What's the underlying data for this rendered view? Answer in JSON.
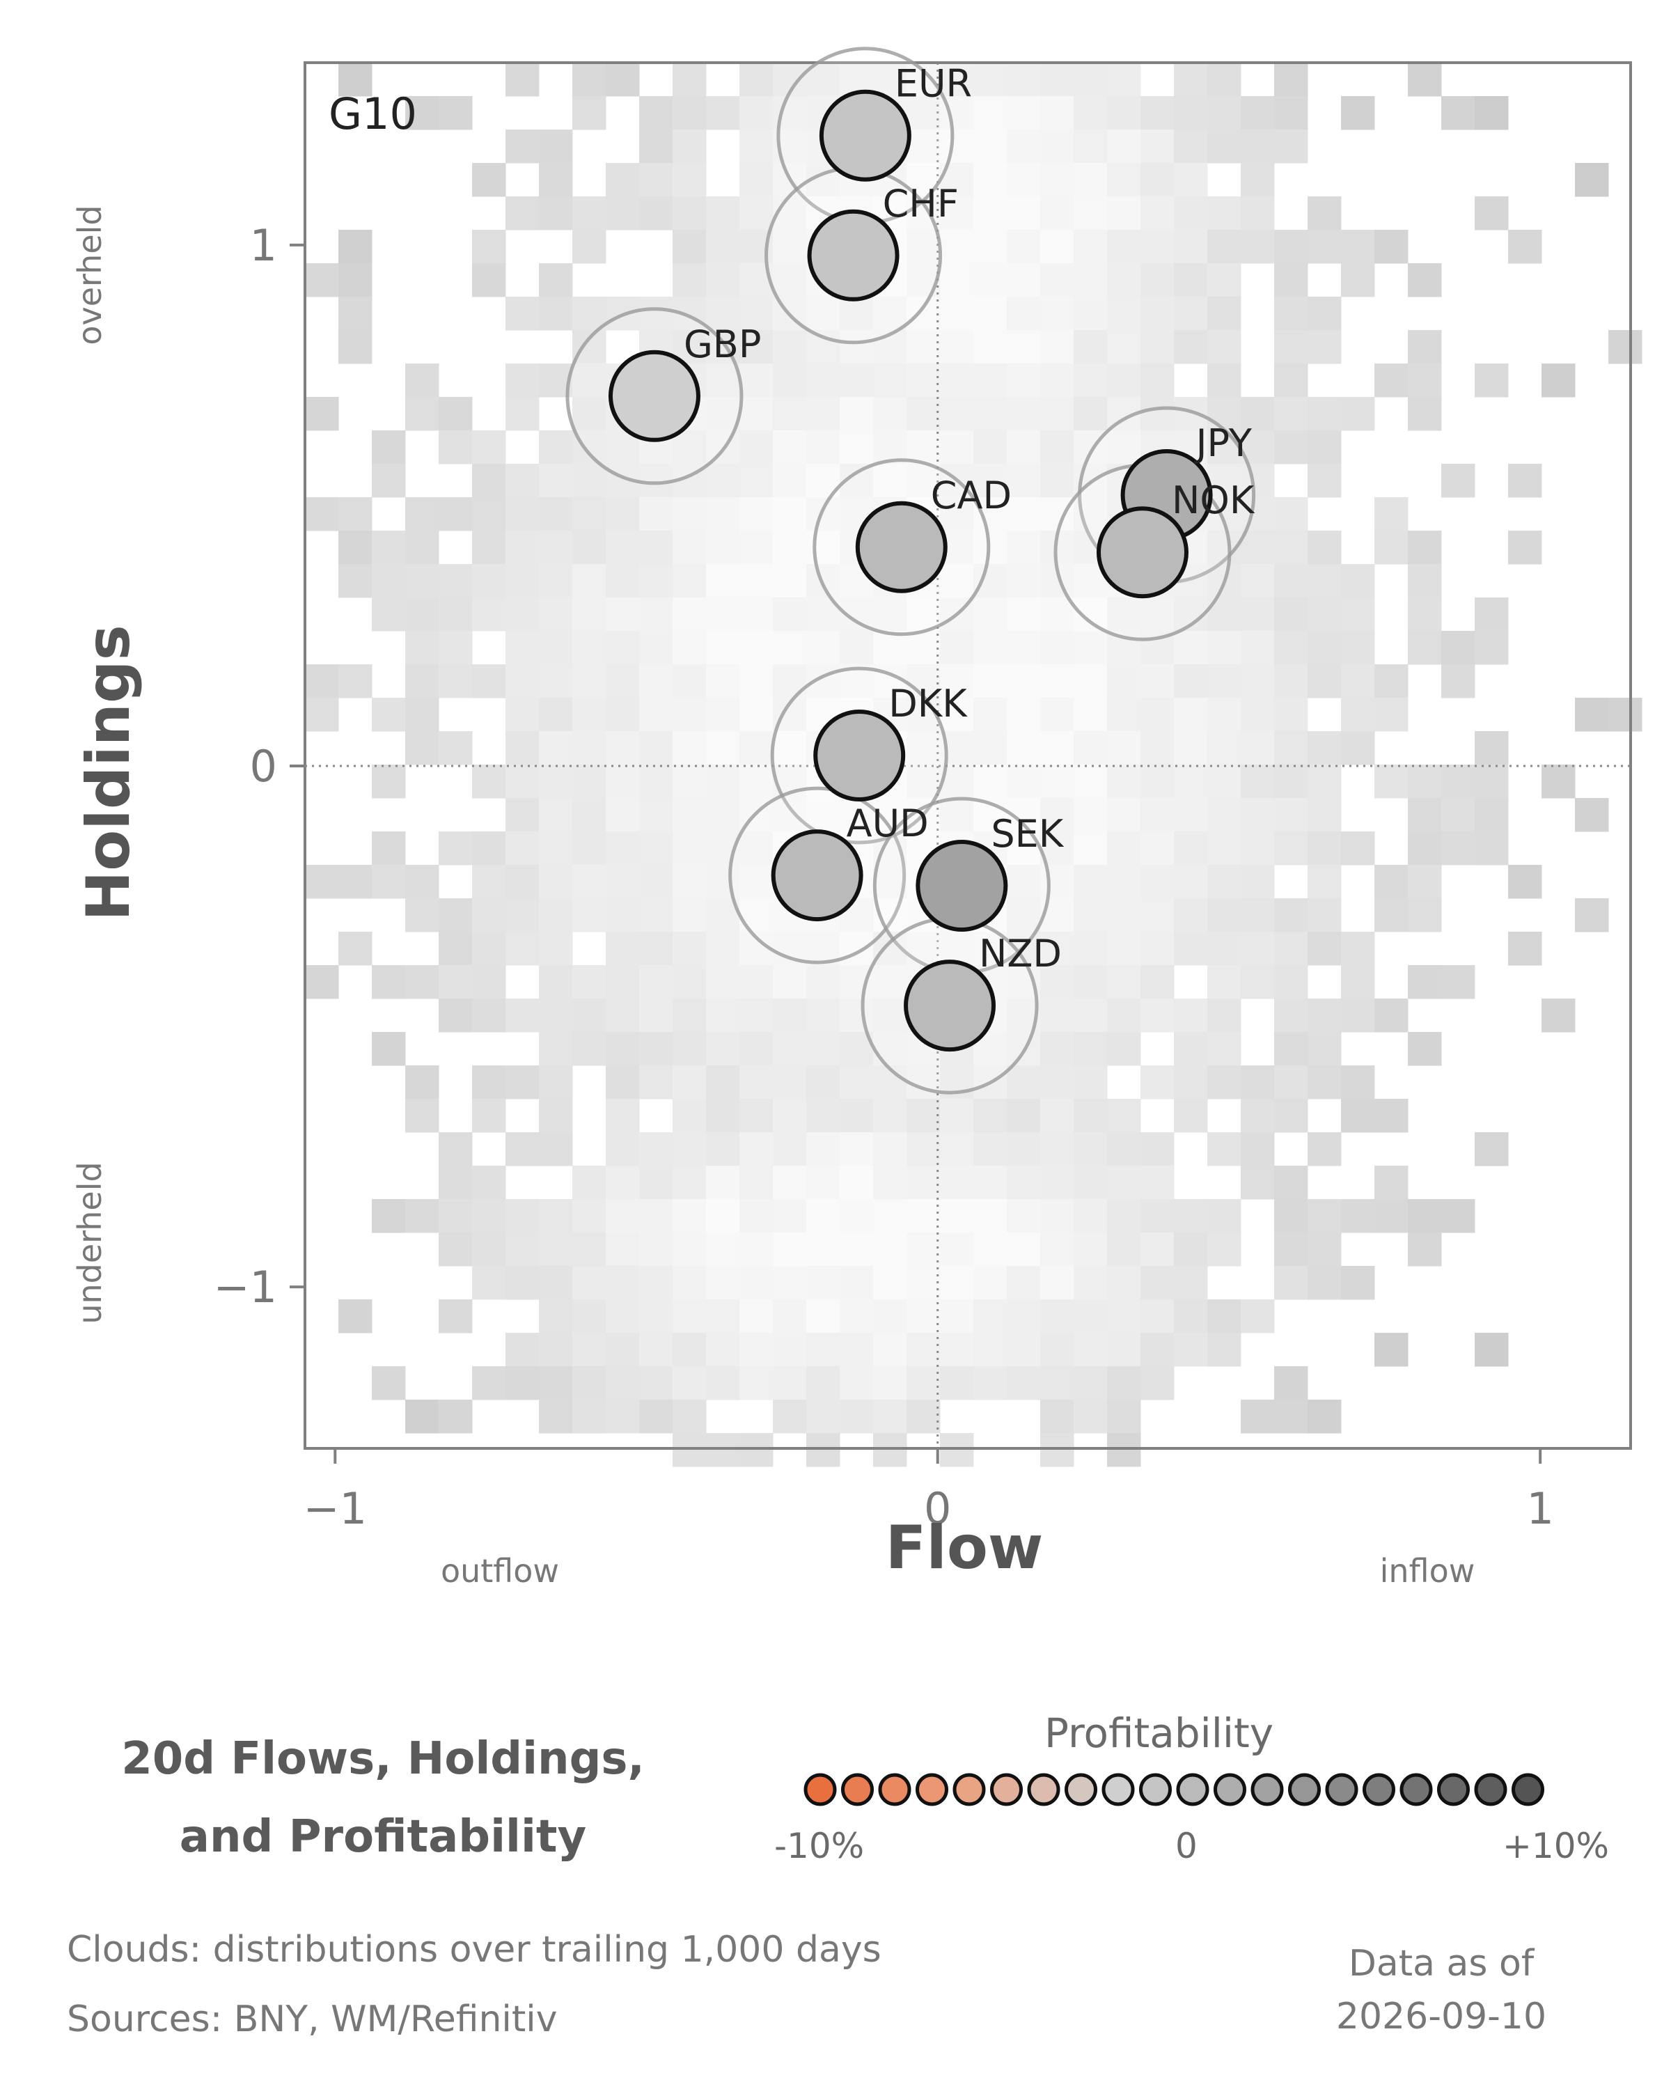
{
  "chart_data": {
    "type": "scatter",
    "panel_label": "G10",
    "xlabel": "Flow",
    "ylabel": "Holdings",
    "x_side_labels": {
      "left": "outflow",
      "right": "inflow"
    },
    "y_side_labels": {
      "top": "overheld",
      "bottom": "underheld"
    },
    "xlim": [
      -1.05,
      1.15
    ],
    "ylim": [
      -1.31,
      1.35
    ],
    "x_ticks": [
      {
        "v": -1,
        "label": "−1"
      },
      {
        "v": 0,
        "label": "0"
      },
      {
        "v": 1,
        "label": "1"
      }
    ],
    "y_ticks": [
      {
        "v": 1,
        "label": "1"
      },
      {
        "v": 0,
        "label": "0"
      },
      {
        "v": -1,
        "label": "−1"
      }
    ],
    "reference_lines": {
      "x": 0,
      "y": 0,
      "style": "dotted"
    },
    "background": "grayscale density clouds",
    "series": [
      {
        "label": "EUR",
        "x": -0.12,
        "y": 1.21,
        "profitability": -0.01
      },
      {
        "label": "CHF",
        "x": -0.14,
        "y": 0.98,
        "profitability": -0.01
      },
      {
        "label": "GBP",
        "x": -0.47,
        "y": 0.71,
        "profitability": -0.015
      },
      {
        "label": "JPY",
        "x": 0.38,
        "y": 0.52,
        "profitability": 0.02
      },
      {
        "label": "CAD",
        "x": -0.06,
        "y": 0.42,
        "profitability": 0.01
      },
      {
        "label": "NOK",
        "x": 0.34,
        "y": 0.41,
        "profitability": 0.01
      },
      {
        "label": "DKK",
        "x": -0.13,
        "y": 0.02,
        "profitability": 0.005
      },
      {
        "label": "AUD",
        "x": -0.2,
        "y": -0.21,
        "profitability": 0.01
      },
      {
        "label": "SEK",
        "x": 0.04,
        "y": -0.23,
        "profitability": 0.025
      },
      {
        "label": "NZD",
        "x": 0.02,
        "y": -0.46,
        "profitability": 0.01
      }
    ]
  },
  "title_lines": [
    "20d Flows, Holdings,",
    "and Profitability"
  ],
  "legend": {
    "title": "Profitability",
    "min_label": "-10%",
    "mid_label": "0",
    "max_label": "+10%",
    "colors": [
      "#e8703f",
      "#e97d52",
      "#ea8a62",
      "#eb9773",
      "#e9a483",
      "#e3b19b",
      "#dbbcaf",
      "#d5c7c0",
      "#cfcfcf",
      "#c5c5c5",
      "#bababa",
      "#aeaeae",
      "#a2a2a2",
      "#969696",
      "#8a8a8a",
      "#7e7e7e",
      "#737373",
      "#686868",
      "#5e5e5e",
      "#545454"
    ]
  },
  "footer": {
    "line1": "Clouds:  distributions over trailing 1,000 days",
    "line2": "Sources:  BNY, WM/Refinitiv"
  },
  "as_of": {
    "line1": "Data as of",
    "line2": "2026-09-10"
  }
}
